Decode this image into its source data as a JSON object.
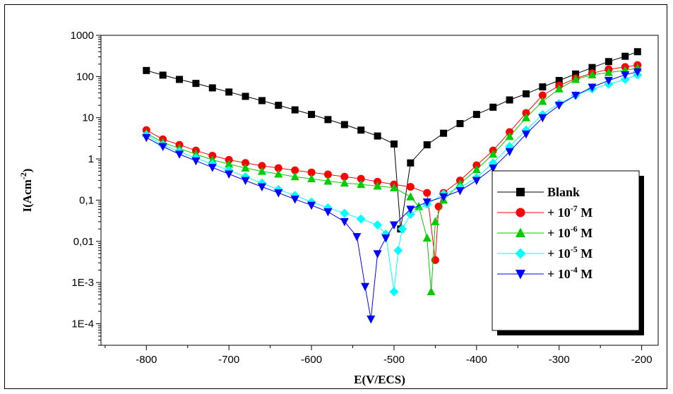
{
  "chart_data": {
    "type": "line",
    "xlabel": "E(V/ECS)",
    "ylabel_main": "I(Acm",
    "ylabel_sup": "-2",
    "ylabel_tail": ")",
    "x_ticks": [
      -800,
      -700,
      -600,
      -500,
      -400,
      -300,
      -200
    ],
    "x_tick_labels": [
      "-800",
      "-700",
      "-600",
      "-500",
      "-400",
      "-300",
      "-200"
    ],
    "xlim": [
      -855,
      -180
    ],
    "y_scale": "log",
    "ylim": [
      3e-05,
      1000
    ],
    "y_ticks": [
      0.0001,
      0.001,
      0.01,
      0.1,
      1,
      10,
      100,
      1000
    ],
    "y_tick_labels": [
      "1E-4",
      "1E-3",
      "0,01",
      "0,1",
      "1",
      "10",
      "100",
      "1000"
    ],
    "legend_position": "center-right",
    "series": [
      {
        "name": "Blank",
        "prefix": "",
        "sup": "",
        "suffix": "",
        "color": "#000000",
        "marker": "square",
        "x": [
          -800,
          -780,
          -760,
          -740,
          -720,
          -700,
          -680,
          -660,
          -640,
          -620,
          -600,
          -580,
          -560,
          -540,
          -520,
          -500,
          -492,
          -480,
          -460,
          -440,
          -420,
          -400,
          -380,
          -360,
          -340,
          -320,
          -300,
          -280,
          -260,
          -240,
          -220,
          -205
        ],
        "y": [
          140,
          108,
          85,
          68,
          53,
          42,
          33,
          26,
          20,
          15.5,
          12,
          9,
          6.8,
          5,
          3.6,
          2.3,
          0.02,
          0.8,
          2.2,
          4.2,
          7.2,
          12,
          18,
          27,
          38,
          56,
          80,
          115,
          165,
          230,
          310,
          400
        ]
      },
      {
        "name": "+ 10",
        "prefix": "+ 10",
        "sup": "-7",
        "suffix": " M",
        "color": "#ff0000",
        "marker": "circle",
        "x": [
          -800,
          -780,
          -760,
          -740,
          -720,
          -700,
          -680,
          -660,
          -640,
          -620,
          -600,
          -580,
          -560,
          -540,
          -520,
          -500,
          -480,
          -460,
          -450,
          -446,
          -440,
          -420,
          -400,
          -380,
          -360,
          -340,
          -320,
          -300,
          -280,
          -260,
          -240,
          -220,
          -205
        ],
        "y": [
          5.0,
          3.0,
          2.2,
          1.6,
          1.2,
          0.95,
          0.8,
          0.68,
          0.6,
          0.53,
          0.47,
          0.42,
          0.37,
          0.33,
          0.28,
          0.24,
          0.21,
          0.15,
          0.0035,
          0.07,
          0.15,
          0.3,
          0.7,
          1.6,
          4.5,
          13,
          35,
          60,
          90,
          120,
          150,
          170,
          190
        ]
      },
      {
        "name": "+ 10",
        "prefix": "+ 10",
        "sup": "-6",
        "suffix": " M",
        "color": "#00cc00",
        "marker": "triangle-up",
        "x": [
          -800,
          -780,
          -760,
          -740,
          -720,
          -700,
          -680,
          -660,
          -640,
          -620,
          -600,
          -580,
          -560,
          -540,
          -520,
          -500,
          -480,
          -470,
          -460,
          -455,
          -450,
          -440,
          -420,
          -400,
          -380,
          -360,
          -340,
          -320,
          -300,
          -280,
          -260,
          -240,
          -220,
          -205
        ],
        "y": [
          4.2,
          2.5,
          1.8,
          1.3,
          0.95,
          0.75,
          0.6,
          0.5,
          0.43,
          0.37,
          0.33,
          0.29,
          0.26,
          0.24,
          0.22,
          0.2,
          0.12,
          0.07,
          0.012,
          0.0006,
          0.03,
          0.1,
          0.25,
          0.55,
          1.3,
          3.5,
          10,
          25,
          50,
          85,
          110,
          125,
          140,
          160
        ]
      },
      {
        "name": "+ 10",
        "prefix": "+ 10",
        "sup": "-5",
        "suffix": " M",
        "color": "#00ffff",
        "marker": "diamond",
        "x": [
          -800,
          -780,
          -760,
          -740,
          -720,
          -700,
          -680,
          -660,
          -640,
          -620,
          -600,
          -580,
          -560,
          -540,
          -520,
          -510,
          -500,
          -495,
          -490,
          -480,
          -460,
          -440,
          -420,
          -400,
          -380,
          -360,
          -340,
          -320,
          -300,
          -280,
          -260,
          -240,
          -220,
          -205
        ],
        "y": [
          3.8,
          2.2,
          1.5,
          1.05,
          0.75,
          0.53,
          0.37,
          0.26,
          0.18,
          0.13,
          0.09,
          0.065,
          0.048,
          0.035,
          0.025,
          0.015,
          0.0006,
          0.006,
          0.02,
          0.045,
          0.08,
          0.14,
          0.2,
          0.35,
          0.8,
          2.0,
          5.0,
          12,
          22,
          35,
          50,
          65,
          85,
          110
        ]
      },
      {
        "name": "+ 10",
        "prefix": "+ 10",
        "sup": "-4",
        "suffix": " M",
        "color": "#0000ff",
        "marker": "triangle-down",
        "x": [
          -800,
          -780,
          -760,
          -740,
          -720,
          -700,
          -680,
          -660,
          -640,
          -620,
          -600,
          -580,
          -560,
          -545,
          -535,
          -528,
          -520,
          -510,
          -500,
          -480,
          -460,
          -440,
          -420,
          -400,
          -380,
          -360,
          -340,
          -320,
          -300,
          -280,
          -260,
          -240,
          -220,
          -205
        ],
        "y": [
          3.3,
          2.0,
          1.3,
          0.9,
          0.62,
          0.43,
          0.3,
          0.21,
          0.15,
          0.105,
          0.075,
          0.052,
          0.03,
          0.013,
          0.0008,
          0.00013,
          0.005,
          0.012,
          0.025,
          0.06,
          0.09,
          0.12,
          0.17,
          0.3,
          0.6,
          1.5,
          4,
          10,
          20,
          35,
          55,
          80,
          110,
          130
        ]
      }
    ]
  }
}
